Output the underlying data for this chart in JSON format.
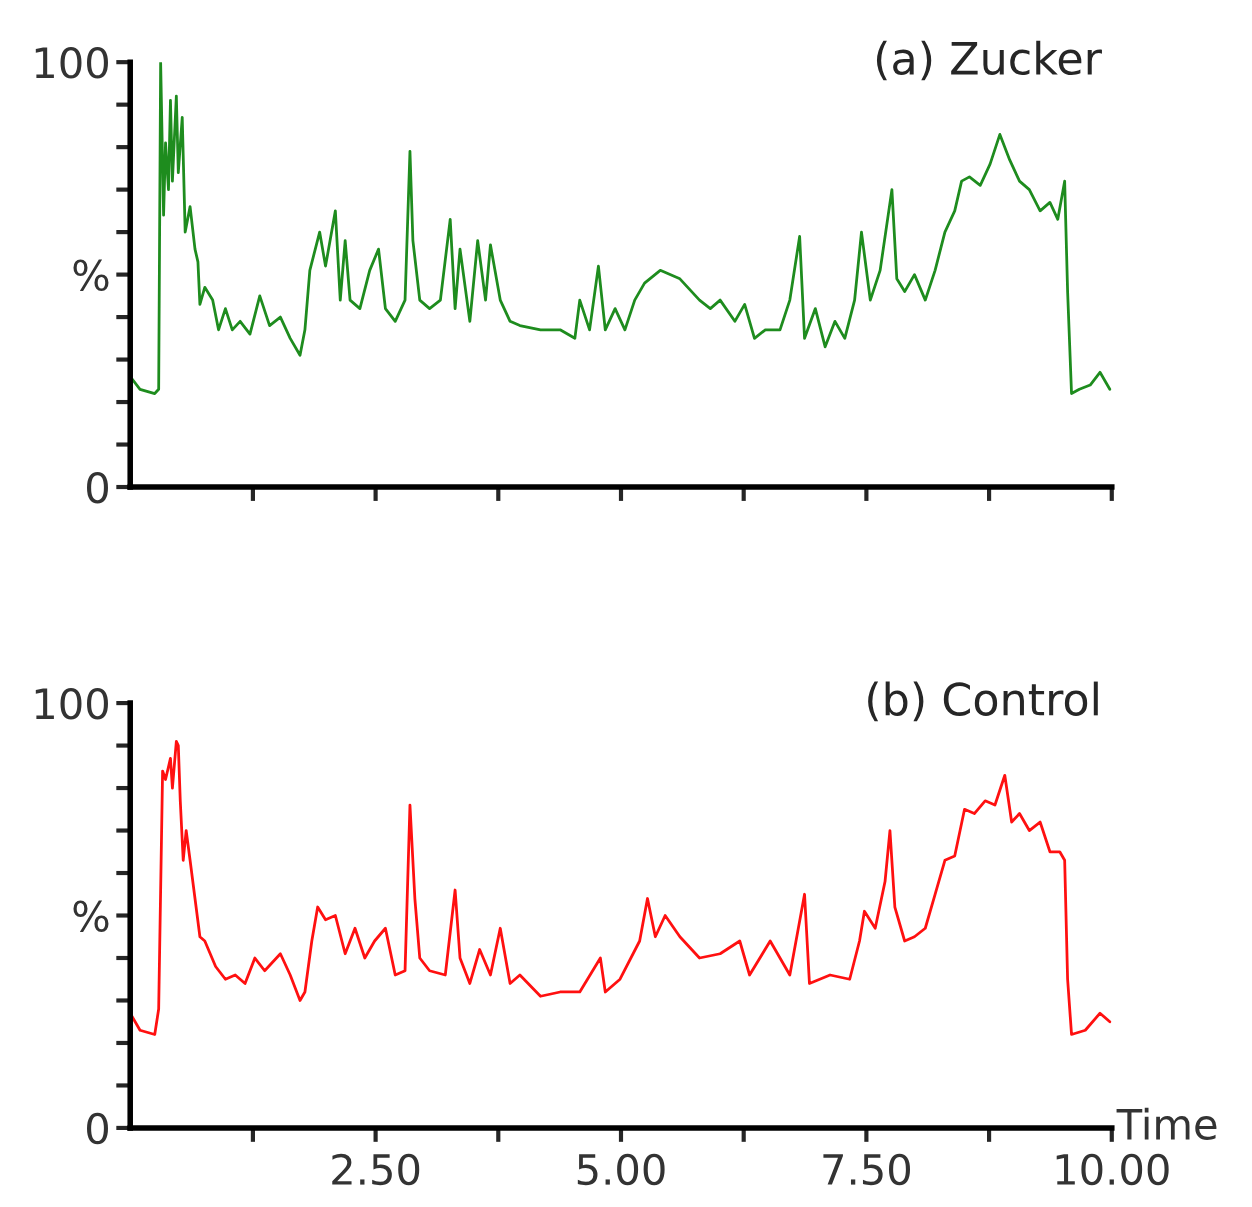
{
  "chart_data": [
    {
      "type": "line",
      "title": "(a) Zucker",
      "xlim": [
        0,
        10
      ],
      "ylim": [
        0,
        100
      ],
      "xticks": [
        {
          "value": 1.25,
          "label": null
        },
        {
          "value": 2.5,
          "label": null
        },
        {
          "value": 3.75,
          "label": null
        },
        {
          "value": 5,
          "label": null
        },
        {
          "value": 6.25,
          "label": null
        },
        {
          "value": 7.5,
          "label": null
        },
        {
          "value": 8.75,
          "label": null
        },
        {
          "value": 10,
          "label": null
        }
      ],
      "yticks": [
        0,
        {
          "value": 10,
          "label": null
        },
        {
          "value": 20,
          "label": null
        },
        {
          "value": 30,
          "label": null
        },
        {
          "value": 40,
          "label": null
        },
        {
          "value": 50,
          "label": "%"
        },
        {
          "value": 60,
          "label": null
        },
        {
          "value": 70,
          "label": null
        },
        {
          "value": 80,
          "label": null
        },
        {
          "value": 90,
          "label": null
        },
        100
      ],
      "tick_labels": "y",
      "grid": false,
      "legend": false,
      "series": [
        {
          "color": "#1e8c1e",
          "x": [
            0,
            0.1,
            0.25,
            0.29,
            0.31,
            0.34,
            0.36,
            0.39,
            0.41,
            0.43,
            0.47,
            0.49,
            0.53,
            0.56,
            0.61,
            0.66,
            0.69,
            0.71,
            0.76,
            0.84,
            0.9,
            0.97,
            1.04,
            1.12,
            1.22,
            1.32,
            1.42,
            1.53,
            1.63,
            1.73,
            1.78,
            1.83,
            1.93,
            1.99,
            2.09,
            2.14,
            2.19,
            2.24,
            2.34,
            2.44,
            2.53,
            2.6,
            2.7,
            2.8,
            2.85,
            2.88,
            2.95,
            3.05,
            3.16,
            3.26,
            3.31,
            3.36,
            3.46,
            3.54,
            3.62,
            3.67,
            3.77,
            3.87,
            3.97,
            4.18,
            4.38,
            4.53,
            4.58,
            4.68,
            4.77,
            4.84,
            4.94,
            5.04,
            5.14,
            5.24,
            5.4,
            5.6,
            5.8,
            5.91,
            6.01,
            6.16,
            6.26,
            6.36,
            6.47,
            6.62,
            6.72,
            6.82,
            6.87,
            6.98,
            7.08,
            7.18,
            7.28,
            7.38,
            7.45,
            7.54,
            7.64,
            7.76,
            7.81,
            7.89,
            7.99,
            8.1,
            8.2,
            8.3,
            8.4,
            8.47,
            8.55,
            8.66,
            8.76,
            8.86,
            8.96,
            9.06,
            9.16,
            9.27,
            9.37,
            9.45,
            9.52,
            9.55,
            9.59,
            9.67,
            9.78,
            9.88,
            9.93,
            9.98
          ],
          "values": [
            26,
            23,
            22,
            23,
            100,
            64,
            81,
            70,
            91,
            72,
            92,
            74,
            87,
            60,
            66,
            56,
            53,
            43,
            47,
            44,
            37,
            42,
            37,
            39,
            36,
            45,
            38,
            40,
            35,
            31,
            37,
            51,
            60,
            52,
            65,
            44,
            58,
            44,
            42,
            51,
            56,
            42,
            39,
            44,
            79,
            58,
            44,
            42,
            44,
            63,
            42,
            56,
            39,
            58,
            44,
            57,
            44,
            39,
            38,
            37,
            37,
            35,
            44,
            37,
            52,
            37,
            42,
            37,
            44,
            48,
            51,
            49,
            44,
            42,
            44,
            39,
            43,
            35,
            37,
            37,
            44,
            59,
            35,
            42,
            33,
            39,
            35,
            44,
            60,
            44,
            51,
            70,
            49,
            46,
            50,
            44,
            51,
            60,
            65,
            72,
            73,
            71,
            76,
            83,
            77,
            72,
            70,
            65,
            67,
            63,
            72,
            46,
            22,
            23,
            24,
            27,
            25,
            23
          ]
        }
      ]
    },
    {
      "type": "line",
      "title": "(b) Control",
      "xlabel": "Time",
      "xlim": [
        0,
        10
      ],
      "ylim": [
        0,
        100
      ],
      "xticks": [
        {
          "value": 1.25,
          "label": null
        },
        {
          "value": 2.5,
          "label": "2.50"
        },
        {
          "value": 3.75,
          "label": null
        },
        {
          "value": 5,
          "label": "5.00"
        },
        {
          "value": 6.25,
          "label": null
        },
        {
          "value": 7.5,
          "label": "7.50"
        },
        {
          "value": 8.75,
          "label": null
        },
        {
          "value": 10,
          "label": "10.00"
        }
      ],
      "yticks": [
        0,
        {
          "value": 10,
          "label": null
        },
        {
          "value": 20,
          "label": null
        },
        {
          "value": 30,
          "label": null
        },
        {
          "value": 40,
          "label": null
        },
        {
          "value": 50,
          "label": "%"
        },
        {
          "value": 60,
          "label": null
        },
        {
          "value": 70,
          "label": null
        },
        {
          "value": 80,
          "label": null
        },
        {
          "value": 90,
          "label": null
        },
        100
      ],
      "grid": false,
      "legend": false,
      "series": [
        {
          "color": "#ff1010",
          "x": [
            0,
            0.1,
            0.25,
            0.29,
            0.33,
            0.36,
            0.41,
            0.43,
            0.47,
            0.49,
            0.51,
            0.54,
            0.57,
            0.61,
            0.66,
            0.71,
            0.76,
            0.87,
            0.97,
            1.07,
            1.17,
            1.27,
            1.37,
            1.53,
            1.63,
            1.73,
            1.78,
            1.85,
            1.91,
            1.99,
            2.09,
            2.19,
            2.29,
            2.39,
            2.49,
            2.6,
            2.7,
            2.8,
            2.85,
            2.9,
            2.95,
            3.05,
            3.21,
            3.31,
            3.36,
            3.46,
            3.56,
            3.67,
            3.77,
            3.87,
            3.97,
            4.18,
            4.38,
            4.58,
            4.79,
            4.84,
            4.99,
            5.19,
            5.27,
            5.35,
            5.45,
            5.6,
            5.8,
            6.01,
            6.21,
            6.31,
            6.52,
            6.72,
            6.87,
            6.92,
            7.13,
            7.33,
            7.43,
            7.48,
            7.59,
            7.69,
            7.74,
            7.79,
            7.89,
            7.99,
            8.1,
            8.2,
            8.3,
            8.4,
            8.5,
            8.6,
            8.71,
            8.81,
            8.91,
            8.98,
            9.06,
            9.16,
            9.27,
            9.37,
            9.47,
            9.52,
            9.55,
            9.59,
            9.73,
            9.88,
            9.98
          ],
          "values": [
            27,
            23,
            22,
            28,
            84,
            82,
            87,
            80,
            91,
            90,
            77,
            63,
            70,
            63,
            54,
            45,
            44,
            38,
            35,
            36,
            34,
            40,
            37,
            41,
            36,
            30,
            32,
            44,
            52,
            49,
            50,
            41,
            47,
            40,
            44,
            47,
            36,
            37,
            76,
            54,
            40,
            37,
            36,
            56,
            40,
            34,
            42,
            36,
            47,
            34,
            36,
            31,
            32,
            32,
            40,
            32,
            35,
            44,
            54,
            45,
            50,
            45,
            40,
            41,
            44,
            36,
            44,
            36,
            55,
            34,
            36,
            35,
            44,
            51,
            47,
            58,
            70,
            52,
            44,
            45,
            47,
            55,
            63,
            64,
            75,
            74,
            77,
            76,
            83,
            72,
            74,
            70,
            72,
            65,
            65,
            63,
            35,
            22,
            23,
            27,
            25
          ]
        }
      ]
    }
  ]
}
